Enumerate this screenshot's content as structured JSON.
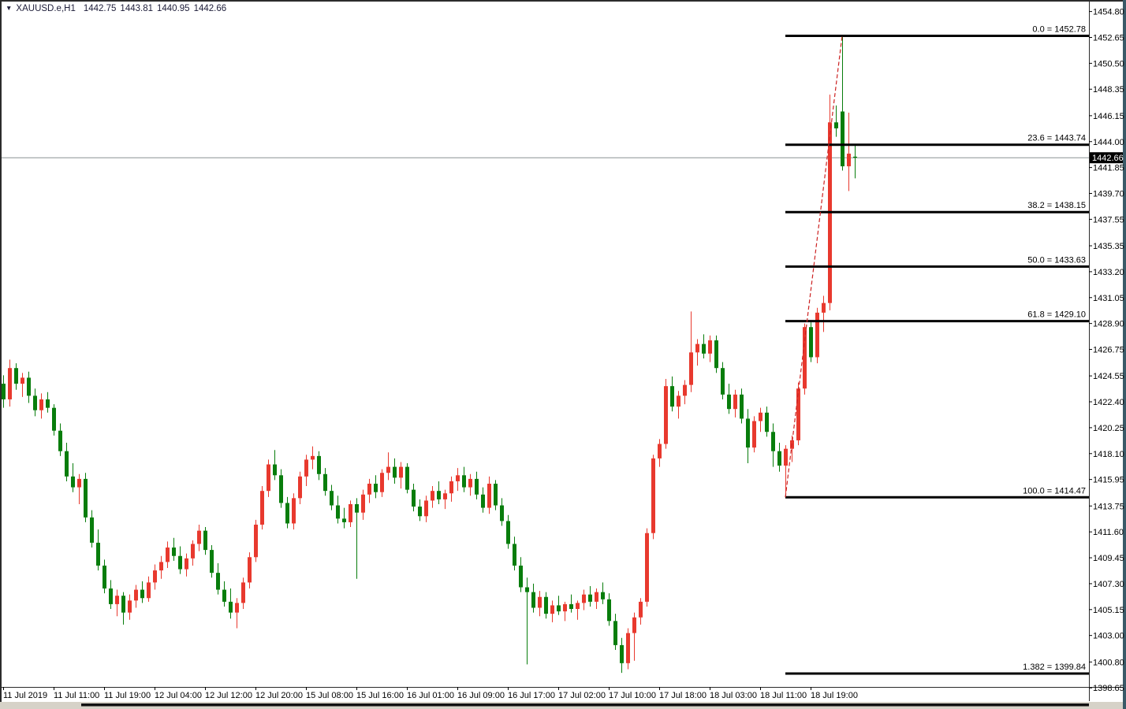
{
  "header": {
    "dropdown_icon": "▼",
    "symbol_timeframe": "XAUUSD.e,H1",
    "open": "1442.75",
    "high": "1443.81",
    "low": "1440.95",
    "close": "1442.66"
  },
  "colors": {
    "background": "#ffffff",
    "bull_candle": "#e8392e",
    "bear_candle": "#087d0c",
    "fib_line": "#000000",
    "fib_trendline": "#cc2222",
    "bid_line": "#8a9294",
    "badge_bg": "#000000",
    "badge_text": "#ffffff",
    "axis_text": "#000000",
    "frame": "#2b2b2b",
    "right_edge_strip": "#3a5a68",
    "scrollbar_track": "#d6d2c8",
    "scrollbar_thumb": "#111111",
    "header_text": "#1c1c38"
  },
  "price_axis": {
    "labels": [
      "1454.80",
      "1452.65",
      "1450.50",
      "1448.35",
      "1446.15",
      "1444.00",
      "1441.85",
      "1439.70",
      "1437.55",
      "1435.35",
      "1433.20",
      "1431.05",
      "1428.90",
      "1426.75",
      "1424.55",
      "1422.40",
      "1420.25",
      "1418.10",
      "1415.95",
      "1413.75",
      "1411.60",
      "1409.45",
      "1407.30",
      "1405.15",
      "1403.00",
      "1400.80",
      "1398.65"
    ],
    "current_price": "1442.66"
  },
  "chart_data": {
    "type": "candlestick",
    "title": "XAUUSD.e,H1",
    "symbol": "XAUUSD.e",
    "timeframe": "H1",
    "ylim": [
      1398.0,
      1455.8
    ],
    "grid": false,
    "current_price": 1442.66,
    "last_candle_ohlc": [
      1442.75,
      1443.81,
      1440.95,
      1442.66
    ],
    "bull_color_meaning": "red body = bullish close, green body = bearish close",
    "time_labels": [
      "11 Jul 2019",
      "11 Jul 11:00",
      "11 Jul 19:00",
      "12 Jul 04:00",
      "12 Jul 12:00",
      "12 Jul 20:00",
      "15 Jul 08:00",
      "15 Jul 16:00",
      "16 Jul 01:00",
      "16 Jul 09:00",
      "16 Jul 17:00",
      "17 Jul 02:00",
      "17 Jul 10:00",
      "17 Jul 18:00",
      "18 Jul 03:00",
      "18 Jul 11:00",
      "18 Jul 19:00"
    ],
    "label_every_n_candles": 8,
    "fib": {
      "levels": [
        {
          "level": "0.0",
          "price": 1452.78,
          "label": "0.0 = 1452.78"
        },
        {
          "level": "23.6",
          "price": 1443.74,
          "label": "23.6 = 1443.74"
        },
        {
          "level": "38.2",
          "price": 1438.15,
          "label": "38.2 = 1438.15"
        },
        {
          "level": "50.0",
          "price": 1433.63,
          "label": "50.0 = 1433.63"
        },
        {
          "level": "61.8",
          "price": 1429.1,
          "label": "61.8 = 1429.10"
        },
        {
          "level": "100.0",
          "price": 1414.47,
          "label": "100.0 = 1414.47"
        },
        {
          "level": "1.382",
          "price": 1399.84,
          "label": "1.382 = 1399.84"
        }
      ],
      "trendline": {
        "from": {
          "candle_index": 124,
          "price": 1414.47
        },
        "to": {
          "candle_index": 133,
          "price": 1452.78
        }
      }
    },
    "candles": [
      [
        1423.9,
        1424.6,
        1421.9,
        1422.6
      ],
      [
        1422.6,
        1425.9,
        1422.0,
        1425.2
      ],
      [
        1425.2,
        1425.6,
        1423.4,
        1423.9
      ],
      [
        1423.9,
        1424.8,
        1422.8,
        1424.4
      ],
      [
        1424.4,
        1424.9,
        1422.3,
        1422.9
      ],
      [
        1422.9,
        1423.5,
        1421.2,
        1421.7
      ],
      [
        1421.7,
        1423.1,
        1421.0,
        1422.6
      ],
      [
        1422.6,
        1423.2,
        1421.5,
        1421.9
      ],
      [
        1421.9,
        1422.2,
        1419.6,
        1420.0
      ],
      [
        1420.0,
        1420.6,
        1417.9,
        1418.3
      ],
      [
        1418.3,
        1419.0,
        1415.8,
        1416.2
      ],
      [
        1416.2,
        1417.3,
        1414.9,
        1415.3
      ],
      [
        1415.3,
        1416.4,
        1413.9,
        1416.0
      ],
      [
        1416.0,
        1416.5,
        1412.4,
        1412.8
      ],
      [
        1412.8,
        1413.4,
        1410.3,
        1410.7
      ],
      [
        1410.7,
        1411.8,
        1408.4,
        1408.8
      ],
      [
        1408.8,
        1409.3,
        1406.5,
        1406.9
      ],
      [
        1406.9,
        1407.6,
        1405.2,
        1405.6
      ],
      [
        1405.6,
        1406.8,
        1404.6,
        1406.3
      ],
      [
        1406.3,
        1406.6,
        1403.9,
        1404.9
      ],
      [
        1404.9,
        1406.4,
        1404.3,
        1405.9
      ],
      [
        1405.9,
        1407.2,
        1405.3,
        1406.8
      ],
      [
        1406.8,
        1407.5,
        1405.7,
        1406.1
      ],
      [
        1406.1,
        1407.9,
        1405.8,
        1407.4
      ],
      [
        1407.4,
        1408.9,
        1406.8,
        1408.4
      ],
      [
        1408.4,
        1409.6,
        1407.7,
        1409.1
      ],
      [
        1409.1,
        1410.8,
        1408.6,
        1410.3
      ],
      [
        1410.3,
        1411.1,
        1409.2,
        1409.6
      ],
      [
        1409.6,
        1410.4,
        1408.1,
        1408.5
      ],
      [
        1408.5,
        1409.8,
        1407.9,
        1409.4
      ],
      [
        1409.4,
        1410.9,
        1408.8,
        1410.6
      ],
      [
        1410.6,
        1412.2,
        1410.0,
        1411.7
      ],
      [
        1411.7,
        1412.0,
        1409.7,
        1410.1
      ],
      [
        1410.1,
        1410.5,
        1407.8,
        1408.2
      ],
      [
        1408.2,
        1409.0,
        1406.4,
        1406.8
      ],
      [
        1406.8,
        1407.5,
        1405.4,
        1405.8
      ],
      [
        1405.8,
        1406.9,
        1404.4,
        1404.9
      ],
      [
        1404.9,
        1406.1,
        1403.6,
        1405.7
      ],
      [
        1405.7,
        1407.8,
        1405.2,
        1407.4
      ],
      [
        1407.4,
        1409.9,
        1406.9,
        1409.5
      ],
      [
        1409.5,
        1412.6,
        1409.1,
        1412.2
      ],
      [
        1412.2,
        1415.4,
        1411.8,
        1415.0
      ],
      [
        1415.0,
        1417.6,
        1414.5,
        1417.2
      ],
      [
        1417.2,
        1418.4,
        1415.9,
        1416.3
      ],
      [
        1416.3,
        1416.8,
        1413.6,
        1414.0
      ],
      [
        1414.0,
        1414.5,
        1411.9,
        1412.3
      ],
      [
        1412.3,
        1414.8,
        1411.8,
        1414.4
      ],
      [
        1414.4,
        1416.6,
        1413.9,
        1416.2
      ],
      [
        1416.2,
        1418.0,
        1415.4,
        1417.6
      ],
      [
        1417.6,
        1418.7,
        1416.8,
        1417.9
      ],
      [
        1417.9,
        1418.3,
        1415.9,
        1416.4
      ],
      [
        1416.4,
        1416.9,
        1414.6,
        1415.0
      ],
      [
        1415.0,
        1415.5,
        1413.4,
        1413.8
      ],
      [
        1413.8,
        1414.6,
        1412.3,
        1412.7
      ],
      [
        1412.7,
        1413.6,
        1411.9,
        1412.4
      ],
      [
        1412.4,
        1414.2,
        1412.0,
        1413.9
      ],
      [
        1413.9,
        1414.4,
        1407.7,
        1413.2
      ],
      [
        1413.2,
        1415.1,
        1412.6,
        1414.7
      ],
      [
        1414.7,
        1416.0,
        1414.0,
        1415.6
      ],
      [
        1415.6,
        1416.3,
        1414.4,
        1414.9
      ],
      [
        1414.9,
        1416.8,
        1414.5,
        1416.5
      ],
      [
        1416.5,
        1418.2,
        1415.9,
        1417.0
      ],
      [
        1417.0,
        1417.7,
        1415.6,
        1416.1
      ],
      [
        1416.1,
        1417.4,
        1415.2,
        1417.0
      ],
      [
        1417.0,
        1417.3,
        1414.8,
        1415.1
      ],
      [
        1415.1,
        1415.6,
        1413.3,
        1413.7
      ],
      [
        1413.7,
        1414.3,
        1412.5,
        1412.9
      ],
      [
        1412.9,
        1414.6,
        1412.4,
        1414.2
      ],
      [
        1414.2,
        1415.4,
        1413.6,
        1415.0
      ],
      [
        1415.0,
        1415.8,
        1413.9,
        1414.3
      ],
      [
        1414.3,
        1415.1,
        1413.5,
        1414.8
      ],
      [
        1414.8,
        1416.2,
        1414.1,
        1415.8
      ],
      [
        1415.8,
        1416.9,
        1415.0,
        1416.3
      ],
      [
        1416.3,
        1417.0,
        1414.9,
        1415.3
      ],
      [
        1415.3,
        1416.4,
        1414.6,
        1416.0
      ],
      [
        1416.0,
        1416.6,
        1414.3,
        1414.7
      ],
      [
        1414.7,
        1415.3,
        1413.2,
        1413.6
      ],
      [
        1413.6,
        1416.2,
        1413.1,
        1415.6
      ],
      [
        1415.6,
        1415.9,
        1413.4,
        1413.8
      ],
      [
        1413.8,
        1414.4,
        1412.1,
        1412.5
      ],
      [
        1412.5,
        1413.0,
        1410.2,
        1410.6
      ],
      [
        1410.6,
        1411.2,
        1408.4,
        1408.8
      ],
      [
        1408.8,
        1409.5,
        1406.6,
        1407.0
      ],
      [
        1407.0,
        1407.8,
        1400.6,
        1406.6
      ],
      [
        1406.6,
        1407.3,
        1404.9,
        1405.3
      ],
      [
        1405.3,
        1406.7,
        1404.6,
        1406.2
      ],
      [
        1406.2,
        1406.6,
        1404.4,
        1404.8
      ],
      [
        1404.8,
        1405.9,
        1404.1,
        1405.5
      ],
      [
        1405.5,
        1406.3,
        1404.7,
        1405.0
      ],
      [
        1405.0,
        1405.8,
        1404.2,
        1405.6
      ],
      [
        1405.6,
        1406.4,
        1404.9,
        1405.2
      ],
      [
        1405.2,
        1405.9,
        1404.3,
        1405.7
      ],
      [
        1405.7,
        1406.8,
        1405.1,
        1406.4
      ],
      [
        1406.4,
        1407.1,
        1405.4,
        1405.8
      ],
      [
        1405.8,
        1406.9,
        1405.2,
        1406.6
      ],
      [
        1406.6,
        1407.4,
        1405.6,
        1406.0
      ],
      [
        1406.0,
        1406.5,
        1403.8,
        1404.2
      ],
      [
        1404.2,
        1404.8,
        1401.8,
        1402.2
      ],
      [
        1402.2,
        1402.8,
        1399.9,
        1400.7
      ],
      [
        1400.7,
        1403.6,
        1400.2,
        1403.2
      ],
      [
        1403.2,
        1404.9,
        1400.9,
        1404.5
      ],
      [
        1404.5,
        1406.1,
        1403.9,
        1405.8
      ],
      [
        1405.8,
        1411.9,
        1405.4,
        1411.5
      ],
      [
        1411.5,
        1418.0,
        1411.0,
        1417.7
      ],
      [
        1417.7,
        1419.3,
        1417.0,
        1418.9
      ],
      [
        1418.9,
        1424.3,
        1418.5,
        1423.7
      ],
      [
        1423.7,
        1424.5,
        1421.6,
        1422.0
      ],
      [
        1422.0,
        1423.3,
        1421.0,
        1422.9
      ],
      [
        1422.9,
        1424.2,
        1422.2,
        1423.8
      ],
      [
        1423.8,
        1429.9,
        1423.2,
        1426.5
      ],
      [
        1426.5,
        1427.6,
        1425.4,
        1427.2
      ],
      [
        1427.2,
        1428.0,
        1426.0,
        1426.4
      ],
      [
        1426.4,
        1427.9,
        1425.7,
        1427.5
      ],
      [
        1427.5,
        1427.9,
        1424.8,
        1425.2
      ],
      [
        1425.2,
        1425.7,
        1422.6,
        1423.0
      ],
      [
        1423.0,
        1423.9,
        1421.4,
        1421.8
      ],
      [
        1421.8,
        1423.4,
        1421.1,
        1423.0
      ],
      [
        1423.0,
        1423.5,
        1420.6,
        1421.0
      ],
      [
        1421.0,
        1421.8,
        1417.3,
        1418.6
      ],
      [
        1418.6,
        1421.2,
        1418.2,
        1420.8
      ],
      [
        1420.8,
        1421.9,
        1419.9,
        1421.5
      ],
      [
        1421.5,
        1422.0,
        1419.5,
        1419.9
      ],
      [
        1419.9,
        1420.6,
        1417.0,
        1418.3
      ],
      [
        1418.3,
        1419.0,
        1416.6,
        1417.1
      ],
      [
        1417.1,
        1418.8,
        1414.47,
        1418.5
      ],
      [
        1418.5,
        1419.6,
        1417.4,
        1419.2
      ],
      [
        1419.2,
        1424.0,
        1418.8,
        1423.5
      ],
      [
        1423.5,
        1428.9,
        1423.0,
        1428.6
      ],
      [
        1428.6,
        1429.0,
        1425.7,
        1426.1
      ],
      [
        1426.1,
        1430.2,
        1425.6,
        1429.8
      ],
      [
        1429.8,
        1431.2,
        1428.2,
        1430.6
      ],
      [
        1430.6,
        1447.9,
        1430.0,
        1445.6
      ],
      [
        1445.6,
        1447.0,
        1444.4,
        1445.1
      ],
      [
        1446.5,
        1452.78,
        1441.6,
        1441.95
      ],
      [
        1441.95,
        1446.4,
        1439.9,
        1443.0
      ],
      [
        1442.75,
        1443.81,
        1440.95,
        1442.66
      ]
    ]
  }
}
